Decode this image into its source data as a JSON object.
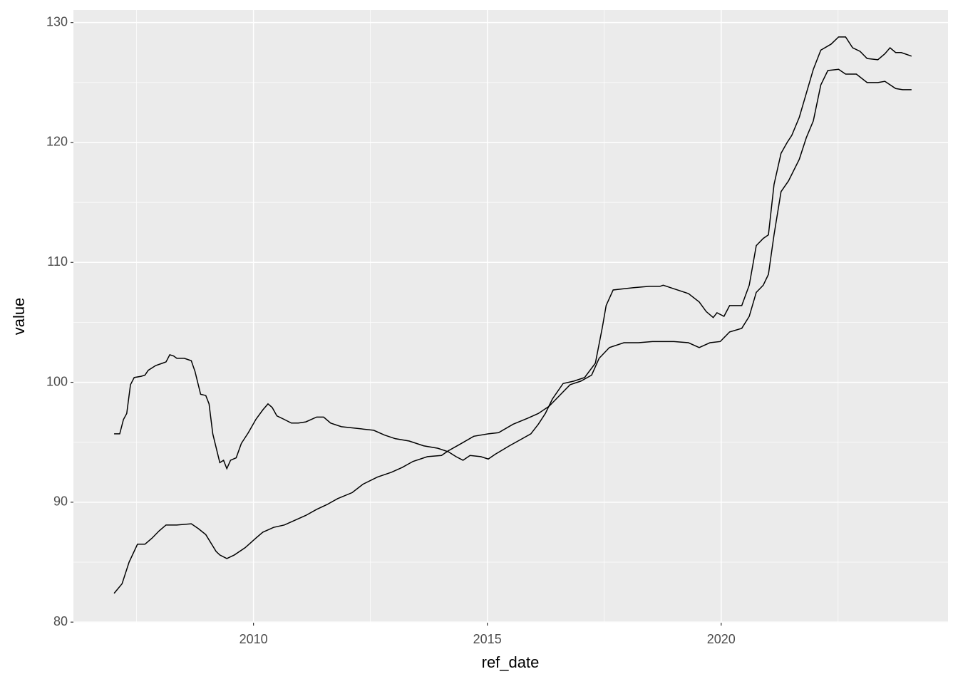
{
  "chart_data": {
    "type": "line",
    "x_label": "ref_date",
    "y_label": "value",
    "xlim": [
      2006.15,
      2024.85
    ],
    "ylim": [
      79.95,
      131.05
    ],
    "xticks": [
      2010,
      2015,
      2020
    ],
    "yticks": [
      80,
      90,
      100,
      110,
      120,
      130
    ],
    "xminor": [
      2007.5,
      2012.5,
      2017.5,
      2022.5
    ],
    "yminor": [
      85,
      95,
      105,
      115,
      125
    ],
    "grid": true,
    "series": [
      {
        "color": "#000000",
        "x": [
          2007.02,
          2007.14,
          2007.22,
          2007.29,
          2007.37,
          2007.45,
          2007.6,
          2007.68,
          2007.75,
          2007.91,
          2008.06,
          2008.13,
          2008.21,
          2008.29,
          2008.36,
          2008.52,
          2008.67,
          2008.75,
          2008.87,
          2008.98,
          2009.05,
          2009.13,
          2009.28,
          2009.36,
          2009.43,
          2009.51,
          2009.63,
          2009.74,
          2009.89,
          2010.05,
          2010.2,
          2010.31,
          2010.4,
          2010.5,
          2010.66,
          2010.81,
          2010.96,
          2011.12,
          2011.35,
          2011.5,
          2011.65,
          2011.88,
          2012.11,
          2012.34,
          2012.57,
          2012.8,
          2013.03,
          2013.33,
          2013.64,
          2013.94,
          2014.17,
          2014.33,
          2014.48,
          2014.63,
          2014.86,
          2015.02,
          2015.17,
          2015.47,
          2015.7,
          2015.93,
          2016.09,
          2016.24,
          2016.39,
          2016.62,
          2016.85,
          2017.08,
          2017.31,
          2017.46,
          2017.54,
          2017.69,
          2017.92,
          2018.15,
          2018.46,
          2018.69,
          2018.76,
          2018.99,
          2019.3,
          2019.53,
          2019.68,
          2019.83,
          2019.91,
          2020.06,
          2020.18,
          2020.44,
          2020.6,
          2020.75,
          2020.9,
          2021.01,
          2021.13,
          2021.28,
          2021.41,
          2021.51,
          2021.67,
          2021.82,
          2021.97,
          2022.13,
          2022.35,
          2022.51,
          2022.66,
          2022.81,
          2022.97,
          2023.12,
          2023.35,
          2023.5,
          2023.61,
          2023.73,
          2023.85,
          2024.07
        ],
        "values": [
          95.7,
          95.7,
          96.9,
          97.4,
          99.8,
          100.4,
          100.5,
          100.6,
          101.0,
          101.4,
          101.6,
          101.7,
          102.3,
          102.2,
          102.0,
          102.0,
          101.8,
          100.9,
          99.0,
          98.9,
          98.2,
          95.7,
          93.3,
          93.5,
          92.8,
          93.5,
          93.7,
          94.9,
          95.8,
          96.9,
          97.7,
          98.2,
          97.9,
          97.2,
          96.9,
          96.6,
          96.6,
          96.7,
          97.1,
          97.1,
          96.6,
          96.3,
          96.2,
          96.1,
          96.0,
          95.6,
          95.3,
          95.1,
          94.7,
          94.5,
          94.2,
          93.8,
          93.5,
          93.9,
          93.8,
          93.6,
          94.0,
          94.7,
          95.2,
          95.7,
          96.5,
          97.4,
          98.6,
          99.9,
          100.1,
          100.4,
          101.6,
          104.6,
          106.4,
          107.7,
          107.8,
          107.9,
          108.0,
          108.0,
          108.1,
          107.8,
          107.4,
          106.7,
          105.9,
          105.4,
          105.8,
          105.5,
          106.4,
          106.4,
          108.1,
          111.4,
          112.0,
          112.3,
          116.5,
          119.1,
          120.0,
          120.6,
          122.1,
          124.1,
          126.1,
          127.7,
          128.2,
          128.8,
          128.8,
          127.9,
          127.6,
          127.0,
          126.9,
          127.4,
          127.9,
          127.5,
          127.5,
          127.2
        ]
      },
      {
        "color": "#000000",
        "x": [
          2007.02,
          2007.19,
          2007.34,
          2007.52,
          2007.68,
          2007.83,
          2007.98,
          2008.13,
          2008.36,
          2008.67,
          2008.82,
          2008.98,
          2009.2,
          2009.28,
          2009.43,
          2009.59,
          2009.82,
          2010.05,
          2010.2,
          2010.43,
          2010.66,
          2010.89,
          2011.12,
          2011.35,
          2011.57,
          2011.8,
          2012.11,
          2012.34,
          2012.65,
          2012.95,
          2013.18,
          2013.41,
          2013.72,
          2014.02,
          2014.17,
          2014.4,
          2014.71,
          2015.02,
          2015.24,
          2015.55,
          2015.86,
          2016.09,
          2016.32,
          2016.47,
          2016.62,
          2016.77,
          2017.0,
          2017.23,
          2017.39,
          2017.61,
          2017.92,
          2018.23,
          2018.53,
          2018.99,
          2019.3,
          2019.53,
          2019.76,
          2019.98,
          2020.18,
          2020.44,
          2020.6,
          2020.75,
          2020.9,
          2021.01,
          2021.13,
          2021.28,
          2021.44,
          2021.67,
          2021.82,
          2021.97,
          2022.13,
          2022.28,
          2022.51,
          2022.66,
          2022.89,
          2023.12,
          2023.35,
          2023.5,
          2023.73,
          2023.88,
          2024.07
        ],
        "values": [
          82.4,
          83.2,
          85.0,
          86.5,
          86.5,
          87.0,
          87.6,
          88.1,
          88.1,
          88.2,
          87.8,
          87.3,
          85.9,
          85.6,
          85.3,
          85.6,
          86.2,
          87.0,
          87.5,
          87.9,
          88.1,
          88.5,
          88.9,
          89.4,
          89.8,
          90.3,
          90.8,
          91.5,
          92.1,
          92.5,
          92.9,
          93.4,
          93.8,
          93.9,
          94.3,
          94.8,
          95.5,
          95.7,
          95.8,
          96.5,
          97.0,
          97.4,
          98.0,
          98.6,
          99.2,
          99.8,
          100.1,
          100.6,
          102.0,
          102.9,
          103.3,
          103.3,
          103.4,
          103.4,
          103.3,
          102.9,
          103.3,
          103.4,
          104.2,
          104.5,
          105.5,
          107.5,
          108.1,
          109.0,
          112.3,
          115.9,
          116.8,
          118.6,
          120.4,
          121.8,
          124.8,
          126.0,
          126.1,
          125.7,
          125.7,
          125.0,
          125.0,
          125.1,
          124.5,
          124.4,
          124.4
        ]
      }
    ]
  }
}
